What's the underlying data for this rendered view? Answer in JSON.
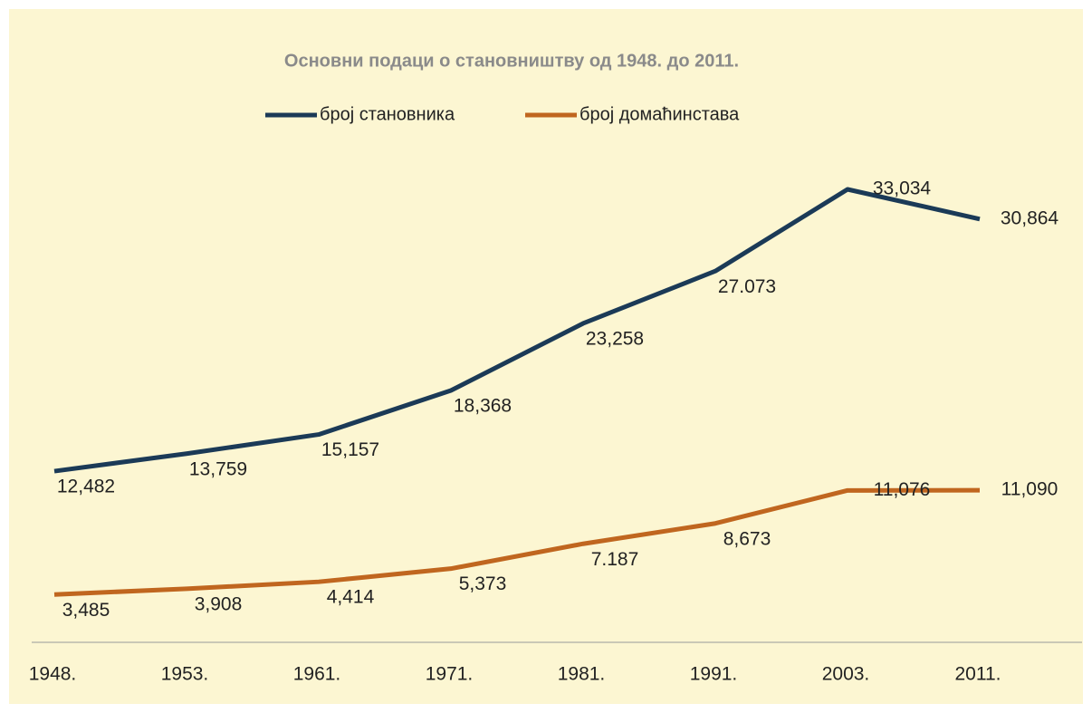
{
  "chart_data": {
    "type": "line",
    "title": "Основни подаци о становништву од 1948. до 2011.",
    "categories": [
      "1948.",
      "1953.",
      "1961.",
      "1971.",
      "1981.",
      "1991.",
      "2003.",
      "2011."
    ],
    "series": [
      {
        "name": "број становника",
        "color": "#1b3a57",
        "values": [
          12482,
          13759,
          15157,
          18368,
          23258,
          27073,
          33034,
          30864
        ],
        "value_labels": [
          "12,482",
          "13,759",
          "15,157",
          "18,368",
          "23,258",
          "27.073",
          "33,034",
          "30,864"
        ]
      },
      {
        "name": "број домаћинстава",
        "color": "#c0661f",
        "values": [
          3485,
          3908,
          4414,
          5373,
          7187,
          8673,
          11076,
          11090
        ],
        "value_labels": [
          "3,485",
          "3,908",
          "4,414",
          "5,373",
          "7.187",
          "8,673",
          "11,076",
          "11,090"
        ]
      }
    ],
    "legend": "top"
  }
}
